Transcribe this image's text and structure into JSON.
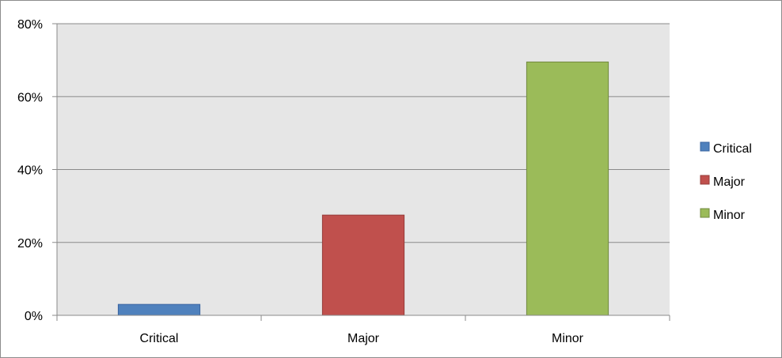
{
  "chart_data": {
    "type": "bar",
    "title": "",
    "xlabel": "",
    "ylabel": "",
    "categories": [
      "Critical",
      "Major",
      "Minor"
    ],
    "values": [
      0.03,
      0.275,
      0.695
    ],
    "colors": [
      "#4f81bd",
      "#c0504d",
      "#9bbb59"
    ],
    "border_colors": [
      "#3a64a0",
      "#963c3a",
      "#71893f"
    ],
    "ylim": [
      0,
      0.8
    ],
    "y_ticks": [
      0,
      0.2,
      0.4,
      0.6,
      0.8
    ],
    "y_tick_labels": [
      "0%",
      "20%",
      "40%",
      "60%",
      "80%"
    ],
    "grid": true,
    "plot_background": "#e6e6e6",
    "legend": {
      "position": "right",
      "entries": [
        "Critical",
        "Major",
        "Minor"
      ]
    }
  }
}
